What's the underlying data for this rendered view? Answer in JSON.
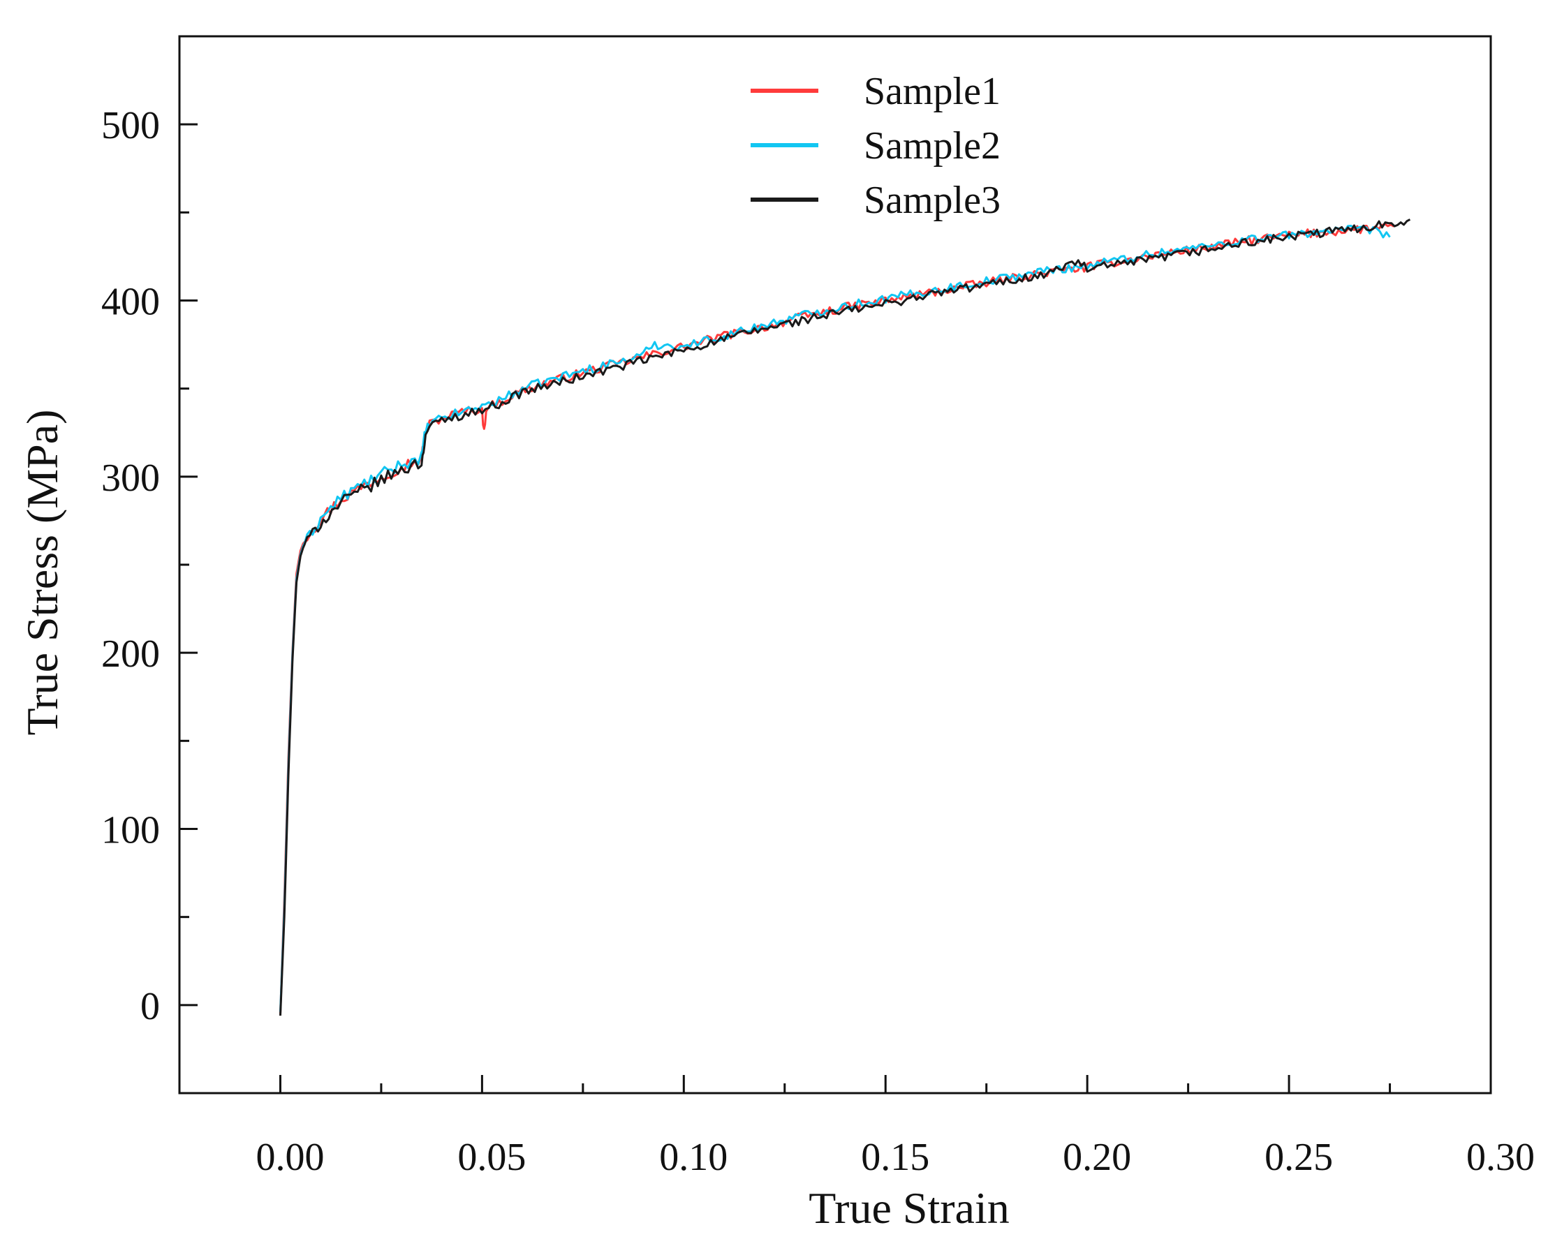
{
  "chart_data": {
    "type": "line",
    "title": "",
    "xlabel": "True Strain",
    "ylabel": "True Stress (MPa)",
    "xlim": [
      -0.025,
      0.3
    ],
    "ylim": [
      -50,
      550
    ],
    "x_ticks": [
      0.0,
      0.05,
      0.1,
      0.15,
      0.2,
      0.25,
      0.3
    ],
    "x_tick_labels": [
      "0.00",
      "0.05",
      "0.10",
      "0.15",
      "0.20",
      "0.25",
      "0.30"
    ],
    "x_minor_ticks": [
      0.025,
      0.075,
      0.125,
      0.175,
      0.225,
      0.275
    ],
    "y_ticks": [
      0,
      100,
      200,
      300,
      400,
      500
    ],
    "y_tick_labels": [
      "0",
      "100",
      "200",
      "300",
      "400",
      "500"
    ],
    "y_minor_ticks": [
      -50,
      50,
      150,
      250,
      350,
      450,
      550
    ],
    "grid": false,
    "legend_position": "top-center",
    "series": [
      {
        "name": "Sample1",
        "color": "#ff3b3b",
        "x": [
          0.0,
          0.001,
          0.002,
          0.003,
          0.004,
          0.005,
          0.006,
          0.008,
          0.01,
          0.015,
          0.02,
          0.025,
          0.03,
          0.035,
          0.0355,
          0.036,
          0.037,
          0.04,
          0.045,
          0.05,
          0.0505,
          0.051,
          0.055,
          0.06,
          0.07,
          0.08,
          0.09,
          0.1,
          0.11,
          0.12,
          0.13,
          0.14,
          0.15,
          0.16,
          0.17,
          0.18,
          0.19,
          0.2,
          0.21,
          0.22,
          0.23,
          0.24,
          0.25,
          0.26,
          0.27,
          0.276
        ],
        "y": [
          -5,
          60,
          140,
          200,
          245,
          258,
          264,
          270,
          276,
          287,
          294,
          300,
          306,
          310,
          318,
          326,
          330,
          333,
          337,
          338,
          325,
          339,
          343,
          349,
          356,
          362,
          368,
          374,
          380,
          385,
          391,
          396,
          400,
          404,
          408,
          412,
          416,
          419,
          423,
          427,
          430,
          434,
          437,
          439,
          441,
          442
        ]
      },
      {
        "name": "Sample2",
        "color": "#12c6f2",
        "x": [
          0.0,
          0.001,
          0.002,
          0.003,
          0.004,
          0.005,
          0.006,
          0.008,
          0.01,
          0.015,
          0.02,
          0.025,
          0.03,
          0.035,
          0.0355,
          0.036,
          0.037,
          0.04,
          0.045,
          0.05,
          0.055,
          0.06,
          0.07,
          0.08,
          0.09,
          0.092,
          0.1,
          0.11,
          0.12,
          0.13,
          0.14,
          0.15,
          0.16,
          0.17,
          0.18,
          0.19,
          0.2,
          0.21,
          0.22,
          0.23,
          0.24,
          0.25,
          0.26,
          0.27,
          0.275
        ],
        "y": [
          -4,
          55,
          135,
          198,
          242,
          256,
          263,
          269,
          276,
          288,
          295,
          301,
          307,
          311,
          318,
          326,
          330,
          333,
          337,
          340,
          344,
          350,
          357,
          363,
          369,
          375,
          374,
          380,
          386,
          392,
          397,
          401,
          405,
          409,
          413,
          417,
          420,
          424,
          428,
          431,
          435,
          437,
          440,
          440,
          436
        ]
      },
      {
        "name": "Sample3",
        "color": "#1a1a1a",
        "x": [
          0.0,
          0.001,
          0.002,
          0.003,
          0.004,
          0.005,
          0.006,
          0.008,
          0.01,
          0.012,
          0.015,
          0.02,
          0.025,
          0.03,
          0.035,
          0.0355,
          0.036,
          0.037,
          0.04,
          0.045,
          0.05,
          0.055,
          0.06,
          0.07,
          0.08,
          0.09,
          0.1,
          0.11,
          0.12,
          0.13,
          0.14,
          0.15,
          0.16,
          0.17,
          0.18,
          0.19,
          0.197,
          0.2,
          0.21,
          0.22,
          0.23,
          0.24,
          0.25,
          0.26,
          0.27,
          0.28
        ],
        "y": [
          -6,
          50,
          130,
          195,
          240,
          255,
          262,
          268,
          274,
          278,
          285,
          292,
          298,
          304,
          308,
          316,
          324,
          328,
          332,
          335,
          338,
          342,
          348,
          354,
          360,
          366,
          372,
          378,
          384,
          389,
          394,
          398,
          403,
          407,
          411,
          415,
          422,
          418,
          421,
          425,
          429,
          433,
          436,
          439,
          442,
          446
        ]
      }
    ]
  }
}
